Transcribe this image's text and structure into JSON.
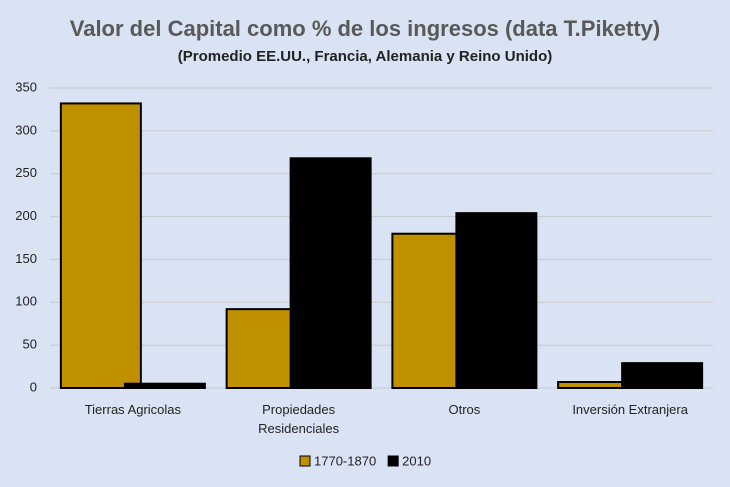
{
  "chart_data": {
    "type": "bar",
    "title": "Valor del Capital como % de los ingresos (data T.Piketty)",
    "subtitle": "(Promedio EE.UU., Francia, Alemania y Reino Unido)",
    "categories": [
      "Tierras Agricolas",
      "Propiedades Residenciales",
      "Otros",
      "Inversión Extranjera"
    ],
    "series": [
      {
        "name": "1770-1870",
        "color": "#bf9000",
        "values": [
          332,
          92,
          180,
          7
        ]
      },
      {
        "name": "2010",
        "color": "#000000",
        "values": [
          5,
          268,
          204,
          29
        ]
      }
    ],
    "ylim": [
      0,
      350
    ],
    "yticks": [
      0,
      50,
      100,
      150,
      200,
      250,
      300,
      350
    ],
    "grid": true,
    "legend": "bottom"
  }
}
